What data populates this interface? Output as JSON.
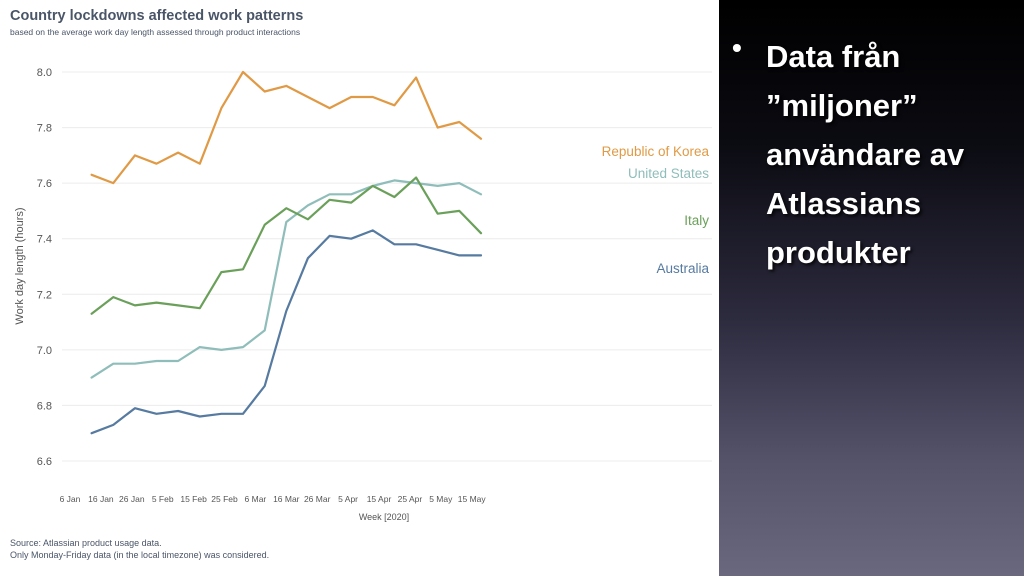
{
  "chart_data": {
    "type": "line",
    "title": "Country lockdowns affected work patterns",
    "subtitle": "based on the average work day length assessed through product interactions",
    "xlabel": "Week [2020]",
    "ylabel": "Work day length (hours)",
    "ylim": [
      6.6,
      8.0
    ],
    "yticks": [
      "6.6",
      "6.8",
      "7.0",
      "7.2",
      "7.4",
      "7.6",
      "7.8",
      "8.0"
    ],
    "xticks": [
      "6 Jan",
      "16 Jan",
      "26 Jan",
      "5 Feb",
      "15 Feb",
      "25 Feb",
      "6 Mar",
      "16 Mar",
      "26 Mar",
      "5 Apr",
      "15 Apr",
      "25 Apr",
      "5 May",
      "15 May"
    ],
    "x": [
      "13 Jan",
      "20 Jan",
      "27 Jan",
      "3 Feb",
      "10 Feb",
      "17 Feb",
      "24 Feb",
      "2 Mar",
      "9 Mar",
      "16 Mar",
      "23 Mar",
      "30 Mar",
      "6 Apr",
      "13 Apr",
      "20 Apr",
      "27 Apr",
      "4 May",
      "11 May",
      "18 May"
    ],
    "series": [
      {
        "name": "Republic of Korea",
        "color": "#e09a45",
        "values": [
          7.63,
          7.6,
          7.7,
          7.67,
          7.71,
          7.67,
          7.87,
          8.0,
          7.93,
          7.95,
          7.91,
          7.87,
          7.91,
          7.91,
          7.88,
          7.98,
          7.8,
          7.82,
          7.76
        ]
      },
      {
        "name": "United States",
        "color": "#8fbdba",
        "values": [
          6.9,
          6.95,
          6.95,
          6.96,
          6.96,
          7.01,
          7.0,
          7.01,
          7.07,
          7.46,
          7.52,
          7.56,
          7.56,
          7.59,
          7.61,
          7.6,
          7.59,
          7.6,
          7.56
        ]
      },
      {
        "name": "Italy",
        "color": "#6aa05a",
        "values": [
          7.13,
          7.19,
          7.16,
          7.17,
          7.16,
          7.15,
          7.28,
          7.29,
          7.45,
          7.51,
          7.47,
          7.54,
          7.53,
          7.59,
          7.55,
          7.62,
          7.49,
          7.5,
          7.42
        ]
      },
      {
        "name": "Australia",
        "color": "#567aa0",
        "values": [
          6.7,
          6.73,
          6.79,
          6.77,
          6.78,
          6.76,
          6.77,
          6.77,
          6.87,
          7.14,
          7.33,
          7.41,
          7.4,
          7.43,
          7.38,
          7.38,
          7.36,
          7.34,
          7.34
        ]
      }
    ],
    "grid": true,
    "legend": "inline labels at right end of lines"
  },
  "source": {
    "line1": "Source: Atlassian product usage data.",
    "line2": "Only Monday-Friday data (in the local timezone) was considered."
  },
  "slide": {
    "bullet": "•",
    "text": "Data från\n”miljoner”\nanvändare av\nAtlassians\nprodukter"
  }
}
